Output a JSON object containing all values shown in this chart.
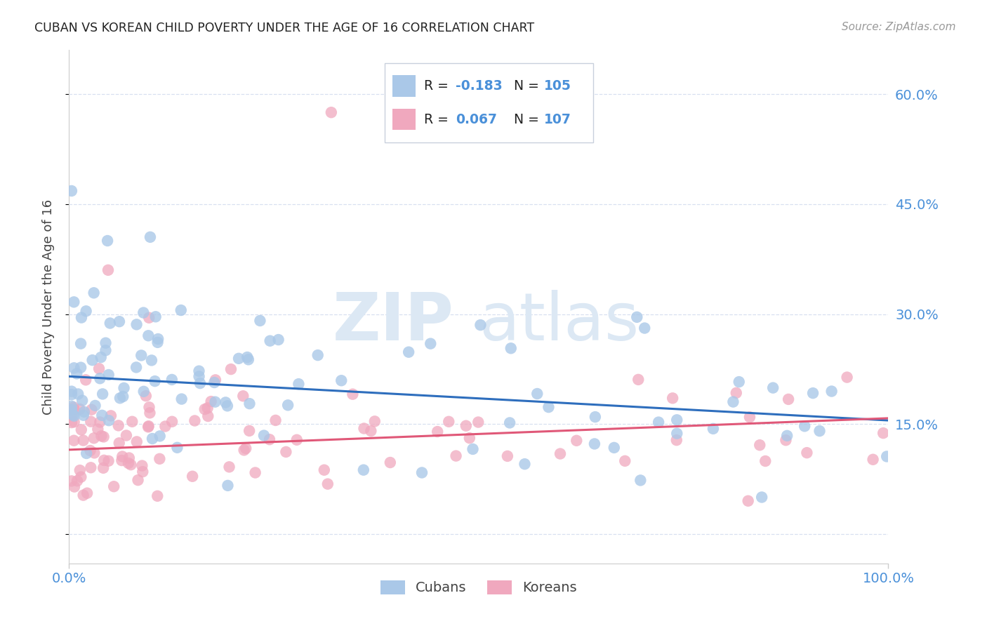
{
  "title": "CUBAN VS KOREAN CHILD POVERTY UNDER THE AGE OF 16 CORRELATION CHART",
  "source": "Source: ZipAtlas.com",
  "ylabel": "Child Poverty Under the Age of 16",
  "xlim": [
    0.0,
    1.0
  ],
  "ylim": [
    -0.04,
    0.66
  ],
  "yticks": [
    0.0,
    0.15,
    0.3,
    0.45,
    0.6
  ],
  "ytick_labels": [
    "",
    "15.0%",
    "30.0%",
    "45.0%",
    "60.0%"
  ],
  "xticks": [
    0.0,
    1.0
  ],
  "xtick_labels": [
    "0.0%",
    "100.0%"
  ],
  "cuban_color": "#aac8e8",
  "korean_color": "#f0a8be",
  "cuban_line_color": "#2e6ebd",
  "korean_line_color": "#e05878",
  "watermark_zip": "ZIP",
  "watermark_atlas": "atlas",
  "watermark_color": "#dce8f4",
  "background_color": "#ffffff",
  "grid_color": "#d8e0f0",
  "title_color": "#222222",
  "axis_label_color": "#444444",
  "tick_label_color": "#4a90d9",
  "r_text_color": "#222222",
  "n_text_color": "#4a90d9",
  "cuban_R": -0.183,
  "cuban_N": 105,
  "korean_R": 0.067,
  "korean_N": 107,
  "legend_r1": "R = -0.183",
  "legend_n1": "N = 105",
  "legend_r2": "R = 0.067",
  "legend_n2": "N = 107"
}
